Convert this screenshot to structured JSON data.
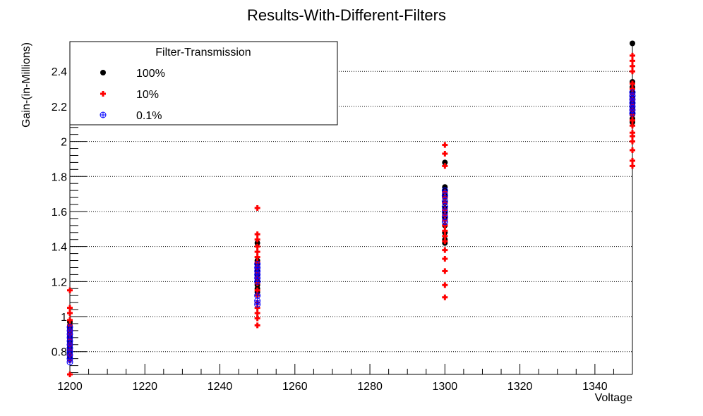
{
  "chart_data": {
    "type": "scatter",
    "title": "Results-With-Different-Filters",
    "xlabel": "Voltage",
    "ylabel": "Gain-(in-Millions)",
    "xlim": [
      1200,
      1350
    ],
    "ylim": [
      0.67,
      2.57
    ],
    "x_ticks": [
      "1200",
      "1220",
      "1240",
      "1260",
      "1280",
      "1300",
      "1320",
      "1340"
    ],
    "y_ticks": [
      "0.8",
      "1",
      "1.2",
      "1.4",
      "1.6",
      "1.8",
      "2",
      "2.2",
      "2.4"
    ],
    "grid": "horizontal-dotted",
    "legend": {
      "title": "Filter-Transmission",
      "placement": "top-left"
    },
    "series": [
      {
        "name": "100%",
        "marker": "filled-circle",
        "color": "#000000",
        "points": [
          [
            1200,
            0.97
          ],
          [
            1200,
            0.95
          ],
          [
            1200,
            0.93
          ],
          [
            1200,
            0.91
          ],
          [
            1200,
            0.89
          ],
          [
            1200,
            0.87
          ],
          [
            1200,
            0.85
          ],
          [
            1200,
            0.83
          ],
          [
            1200,
            0.81
          ],
          [
            1200,
            0.79
          ],
          [
            1200,
            0.77
          ],
          [
            1250,
            1.42
          ],
          [
            1250,
            1.32
          ],
          [
            1250,
            1.3
          ],
          [
            1250,
            1.28
          ],
          [
            1250,
            1.26
          ],
          [
            1250,
            1.24
          ],
          [
            1250,
            1.22
          ],
          [
            1250,
            1.2
          ],
          [
            1250,
            1.18
          ],
          [
            1250,
            1.16
          ],
          [
            1250,
            1.14
          ],
          [
            1300,
            1.88
          ],
          [
            1300,
            1.74
          ],
          [
            1300,
            1.72
          ],
          [
            1300,
            1.7
          ],
          [
            1300,
            1.68
          ],
          [
            1300,
            1.65
          ],
          [
            1300,
            1.62
          ],
          [
            1300,
            1.59
          ],
          [
            1300,
            1.56
          ],
          [
            1300,
            1.52
          ],
          [
            1300,
            1.48
          ],
          [
            1300,
            1.44
          ],
          [
            1300,
            1.42
          ],
          [
            1350,
            2.56
          ],
          [
            1350,
            2.34
          ],
          [
            1350,
            2.31
          ],
          [
            1350,
            2.28
          ],
          [
            1350,
            2.25
          ],
          [
            1350,
            2.22
          ],
          [
            1350,
            2.19
          ],
          [
            1350,
            2.16
          ],
          [
            1350,
            2.13
          ],
          [
            1350,
            2.11
          ]
        ]
      },
      {
        "name": "10%",
        "marker": "plus",
        "color": "#ff0000",
        "points": [
          [
            1200,
            1.15
          ],
          [
            1200,
            1.05
          ],
          [
            1200,
            1.02
          ],
          [
            1200,
            0.98
          ],
          [
            1200,
            0.95
          ],
          [
            1200,
            0.92
          ],
          [
            1200,
            0.9
          ],
          [
            1200,
            0.87
          ],
          [
            1200,
            0.84
          ],
          [
            1200,
            0.81
          ],
          [
            1200,
            0.78
          ],
          [
            1200,
            0.75
          ],
          [
            1200,
            0.67
          ],
          [
            1250,
            1.62
          ],
          [
            1250,
            1.47
          ],
          [
            1250,
            1.44
          ],
          [
            1250,
            1.4
          ],
          [
            1250,
            1.37
          ],
          [
            1250,
            1.34
          ],
          [
            1250,
            1.31
          ],
          [
            1250,
            1.28
          ],
          [
            1250,
            1.25
          ],
          [
            1250,
            1.22
          ],
          [
            1250,
            1.19
          ],
          [
            1250,
            1.15
          ],
          [
            1250,
            1.12
          ],
          [
            1250,
            1.08
          ],
          [
            1250,
            1.05
          ],
          [
            1250,
            1.02
          ],
          [
            1250,
            0.99
          ],
          [
            1250,
            0.95
          ],
          [
            1300,
            1.98
          ],
          [
            1300,
            1.93
          ],
          [
            1300,
            1.86
          ],
          [
            1300,
            1.71
          ],
          [
            1300,
            1.68
          ],
          [
            1300,
            1.65
          ],
          [
            1300,
            1.61
          ],
          [
            1300,
            1.58
          ],
          [
            1300,
            1.55
          ],
          [
            1300,
            1.52
          ],
          [
            1300,
            1.49
          ],
          [
            1300,
            1.46
          ],
          [
            1300,
            1.43
          ],
          [
            1300,
            1.38
          ],
          [
            1300,
            1.33
          ],
          [
            1300,
            1.26
          ],
          [
            1300,
            1.18
          ],
          [
            1300,
            1.11
          ],
          [
            1350,
            2.49
          ],
          [
            1350,
            2.46
          ],
          [
            1350,
            2.43
          ],
          [
            1350,
            2.4
          ],
          [
            1350,
            2.33
          ],
          [
            1350,
            2.3
          ],
          [
            1350,
            2.27
          ],
          [
            1350,
            2.24
          ],
          [
            1350,
            2.21
          ],
          [
            1350,
            2.18
          ],
          [
            1350,
            2.15
          ],
          [
            1350,
            2.12
          ],
          [
            1350,
            2.09
          ],
          [
            1350,
            2.05
          ],
          [
            1350,
            2.03
          ],
          [
            1350,
            2.0
          ],
          [
            1350,
            1.95
          ],
          [
            1350,
            1.89
          ],
          [
            1350,
            1.86
          ]
        ]
      },
      {
        "name": "0.1%",
        "marker": "circle-plus",
        "color": "#0000ff",
        "points": [
          [
            1200,
            0.94
          ],
          [
            1200,
            0.92
          ],
          [
            1200,
            0.9
          ],
          [
            1200,
            0.88
          ],
          [
            1200,
            0.86
          ],
          [
            1200,
            0.84
          ],
          [
            1200,
            0.82
          ],
          [
            1200,
            0.8
          ],
          [
            1200,
            0.78
          ],
          [
            1200,
            0.76
          ],
          [
            1200,
            0.74
          ],
          [
            1250,
            1.3
          ],
          [
            1250,
            1.28
          ],
          [
            1250,
            1.26
          ],
          [
            1250,
            1.24
          ],
          [
            1250,
            1.22
          ],
          [
            1250,
            1.2
          ],
          [
            1250,
            1.12
          ],
          [
            1250,
            1.09
          ],
          [
            1250,
            1.07
          ],
          [
            1300,
            1.72
          ],
          [
            1300,
            1.69
          ],
          [
            1300,
            1.66
          ],
          [
            1300,
            1.63
          ],
          [
            1300,
            1.6
          ],
          [
            1300,
            1.57
          ],
          [
            1300,
            1.54
          ],
          [
            1350,
            2.28
          ],
          [
            1350,
            2.26
          ],
          [
            1350,
            2.24
          ],
          [
            1350,
            2.22
          ],
          [
            1350,
            2.2
          ],
          [
            1350,
            2.18
          ],
          [
            1350,
            2.16
          ]
        ]
      }
    ]
  }
}
